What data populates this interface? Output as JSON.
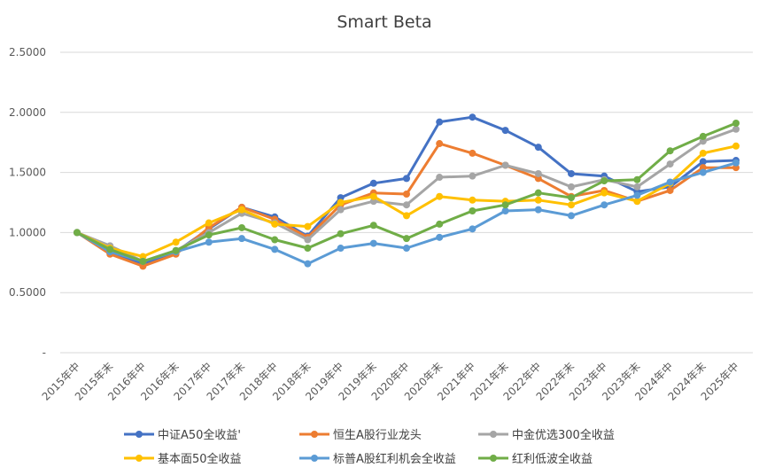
{
  "chart_data": {
    "type": "line",
    "title": "Smart Beta",
    "xlabel": "",
    "ylabel": "",
    "ylim": [
      0,
      2.5
    ],
    "y_ticks": [
      "-",
      "0.5000",
      "1.0000",
      "1.5000",
      "2.0000",
      "2.5000"
    ],
    "grid": true,
    "legend_position": "bottom",
    "categories": [
      "2015年中",
      "2015年末",
      "2016年中",
      "2016年末",
      "2017年中",
      "2017年末",
      "2018年中",
      "2018年末",
      "2019年中",
      "2019年末",
      "2020年中",
      "2020年末",
      "2021年中",
      "2021年末",
      "2022年中",
      "2022年末",
      "2023年中",
      "2023年末",
      "2024年中",
      "2024年末",
      "2025年中"
    ],
    "series": [
      {
        "name": "中证A50全收益'",
        "color": "#4472c4",
        "values": [
          1.0,
          0.84,
          0.74,
          0.84,
          1.03,
          1.21,
          1.13,
          0.97,
          1.29,
          1.41,
          1.45,
          1.92,
          1.96,
          1.85,
          1.71,
          1.49,
          1.47,
          1.34,
          1.38,
          1.59,
          1.6
        ]
      },
      {
        "name": "恒生A股行业龙头",
        "color": "#ed7d31",
        "values": [
          1.0,
          0.82,
          0.72,
          0.82,
          1.04,
          1.21,
          1.11,
          0.96,
          1.23,
          1.33,
          1.32,
          1.74,
          1.66,
          1.56,
          1.45,
          1.3,
          1.35,
          1.26,
          1.35,
          1.54,
          1.54
        ]
      },
      {
        "name": "中金优选300全收益",
        "color": "#a5a5a5",
        "values": [
          1.0,
          0.89,
          0.76,
          0.85,
          1.0,
          1.16,
          1.08,
          0.94,
          1.19,
          1.26,
          1.23,
          1.46,
          1.47,
          1.56,
          1.49,
          1.38,
          1.44,
          1.38,
          1.57,
          1.76,
          1.86
        ]
      },
      {
        "name": "基本面50全收益",
        "color": "#ffc000",
        "values": [
          1.0,
          0.87,
          0.8,
          0.92,
          1.08,
          1.19,
          1.07,
          1.05,
          1.25,
          1.3,
          1.14,
          1.3,
          1.27,
          1.26,
          1.27,
          1.23,
          1.33,
          1.26,
          1.41,
          1.66,
          1.72
        ]
      },
      {
        "name": "标普A股红利机会全收益",
        "color": "#5b9bd5",
        "values": [
          1.0,
          0.84,
          0.76,
          0.84,
          0.92,
          0.95,
          0.86,
          0.74,
          0.87,
          0.91,
          0.87,
          0.96,
          1.03,
          1.18,
          1.19,
          1.14,
          1.23,
          1.31,
          1.42,
          1.5,
          1.58
        ]
      },
      {
        "name": "红利低波全收益",
        "color": "#70ad47",
        "values": [
          1.0,
          0.86,
          0.76,
          0.85,
          0.98,
          1.04,
          0.94,
          0.87,
          0.99,
          1.06,
          0.95,
          1.07,
          1.18,
          1.23,
          1.33,
          1.29,
          1.43,
          1.44,
          1.68,
          1.8,
          1.91
        ]
      }
    ]
  }
}
